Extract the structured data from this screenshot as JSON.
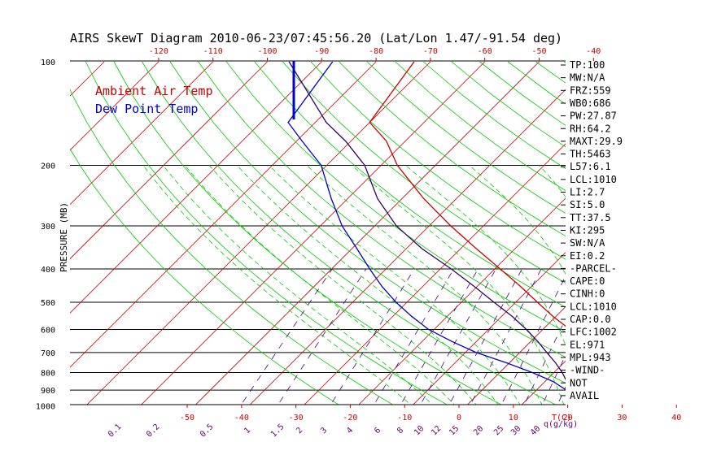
{
  "title": "AIRS SkewT Diagram 2010-06-23/07:45:56.20 (Lat/Lon 1.47/-91.54 deg)",
  "colors": {
    "ambient": "#cc0000",
    "dewpoint": "#0000cc",
    "parcel": "#330066",
    "isotherm": "#cc0000",
    "dry_adiabat": "#00cc00",
    "moist_adiabat": "#00cc00",
    "mixing_ratio": "#4b0082",
    "isobar": "#000000"
  },
  "legend": {
    "ambient": "Ambient Air Temp",
    "dewpoint": "Dew Point Temp"
  },
  "axis": {
    "ylabel": "PRESSURE (MB)",
    "xlabel_unit": "T(C)",
    "mix_unit": "q(g/kg)"
  },
  "parameters": [
    "TP:100",
    "MW:N/A",
    "FRZ:559",
    "WB0:686",
    "PW:27.87",
    "RH:64.2",
    "MAXT:29.9",
    "TH:5463",
    "L57:6.1",
    "LCL:1010",
    "LI:2.7",
    "SI:5.0",
    "TT:37.5",
    "KI:295",
    "SW:N/A",
    "EI:0.2",
    "-PARCEL-",
    "CAPE:0",
    "CINH:0",
    "LCL:1010",
    "CAP:0.0",
    "LFC:1002",
    "EL:971",
    "MPL:943",
    "-WIND-",
    "NOT",
    "AVAIL"
  ],
  "chart_data": {
    "type": "line",
    "title": "AIRS SkewT Diagram 2010-06-23/07:45:56.20 (Lat/Lon 1.47/-91.54 deg)",
    "ylabel": "PRESSURE (MB)",
    "xlabel": "T(C)",
    "y_scale": "log",
    "ylim": [
      100,
      1050
    ],
    "pressure_ticks": [
      100,
      200,
      300,
      400,
      500,
      600,
      700,
      800,
      900,
      1000
    ],
    "pressure_tick_labels": [
      "100",
      "200",
      "300",
      "400",
      "500",
      "600",
      "700",
      "800",
      "900",
      "1000"
    ],
    "bottom_temp_ticks": [
      -50,
      -40,
      -30,
      -20,
      -10,
      0,
      10,
      20,
      30,
      40
    ],
    "top_temp_ticks": [
      -120,
      -110,
      -100,
      -90,
      -80,
      -70,
      -60,
      -50,
      -40
    ],
    "mixing_ratio_labels": [
      "0.1",
      "0.2",
      "0.5",
      "1",
      "1.5",
      "2",
      "3",
      "4",
      "6",
      "8",
      "10",
      "12",
      "15",
      "20",
      "25",
      "30",
      "40"
    ],
    "series": [
      {
        "name": "Ambient Air Temp",
        "pressure": [
          1010,
          1000,
          950,
          900,
          850,
          800,
          750,
          700,
          650,
          600,
          550,
          500,
          450,
          400,
          350,
          300,
          250,
          200,
          170,
          150,
          100
        ],
        "temperature": [
          23.6,
          23.0,
          22.0,
          20.8,
          19.2,
          17.5,
          16.0,
          14.6,
          10.0,
          5.0,
          -0.5,
          -6.0,
          -12.0,
          -19.0,
          -27.0,
          -36.0,
          -46.0,
          -57.0,
          -63.5,
          -70.0,
          -73.0
        ]
      },
      {
        "name": "Dew Point Temp",
        "pressure": [
          1010,
          1000,
          950,
          900,
          850,
          800,
          750,
          700,
          650,
          600,
          550,
          500,
          450,
          400,
          350,
          300,
          250,
          200,
          170,
          150,
          100
        ],
        "temperature": [
          20.4,
          20.0,
          18.5,
          15.5,
          11.5,
          6.0,
          -0.5,
          -8.0,
          -14.5,
          -21.0,
          -26.5,
          -32.0,
          -37.5,
          -43.0,
          -49.0,
          -56.0,
          -63.0,
          -71.0,
          -79.0,
          -85.0,
          -88.0
        ]
      },
      {
        "name": "",
        "pressure": [
          1010,
          1000,
          950,
          900,
          850,
          800,
          750,
          700,
          650,
          600,
          550,
          500,
          450,
          400,
          350,
          300,
          250,
          200,
          170,
          150,
          100
        ],
        "temperature": [
          23.0,
          22.0,
          18.7,
          16.5,
          14.0,
          11.5,
          8.5,
          5.0,
          1.3,
          -3.0,
          -8.0,
          -14.0,
          -20.5,
          -28.0,
          -37.0,
          -46.0,
          -54.5,
          -63.0,
          -71.0,
          -78.0,
          -96.0
        ]
      }
    ]
  }
}
